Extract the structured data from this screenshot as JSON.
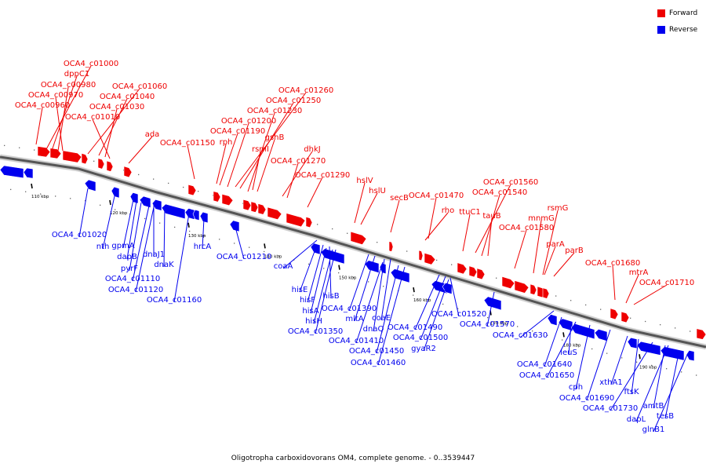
{
  "legend": {
    "forward_label": "Forward",
    "reverse_label": "Reverse",
    "forward_color": "#ee0000",
    "reverse_color": "#0000ee"
  },
  "caption": "Oligotropha carboxidovorans OM4, complete genome. - 0..3539447",
  "ticks": [
    "110 kbp",
    "120 kbp",
    "130 kbp",
    "140 kbp",
    "150 kbp",
    "160 kbp",
    "170 kbp",
    "180 kbp",
    "190 kbp"
  ],
  "forward_genes": [
    "OCA4_c01000",
    "dppC1",
    "OCA4_c00980",
    "OCA4_c00970",
    "OCA4_c00960",
    "OCA4_c01060",
    "OCA4_c01040",
    "OCA4_c01030",
    "OCA4_c01010",
    "ada",
    "OCA4_c01150",
    "OCA4_c01260",
    "OCA4_c01250",
    "OCA4_c01230",
    "OCA4_c01200",
    "OCA4_c01190",
    "rph",
    "gshB",
    "rsmI",
    "dhkJ",
    "OCA4_c01270",
    "OCA4_c01290",
    "hslV",
    "hslU",
    "secB",
    "OCA4_c01470",
    "rho",
    "ttuC1",
    "OCA4_c01560",
    "OCA4_c01540",
    "tauB",
    "rsmG",
    "mnmG",
    "OCA4_c01580",
    "parA",
    "parB",
    "OCA4_c01680",
    "mtrA",
    "OCA4_c01710"
  ],
  "reverse_genes": [
    "OCA4_c01020",
    "nth",
    "gpmA",
    "dapB",
    "dnaJ1",
    "pyrF",
    "dnaK",
    "OCA4_c01110",
    "OCA4_c01120",
    "OCA4_c01160",
    "hrcA",
    "OCA4_c01210",
    "coaA",
    "hisE",
    "hisF",
    "hisB",
    "hisA",
    "hisH",
    "OCA4_c01350",
    "OCA4_c01390",
    "mltA",
    "coaE",
    "dnaQ",
    "OCA4_c01410",
    "OCA4_c01490",
    "OCA4_c01450",
    "OCA4_c01500",
    "OCA4_c01460",
    "gyaR2",
    "OCA4_c01520",
    "OCA4_c01570",
    "OCA4_c01630",
    "leuS",
    "OCA4_c01640",
    "OCA4_c01650",
    "cph",
    "xthA1",
    "OCA4_c01690",
    "ftsK",
    "OCA4_c01730",
    "amtB",
    "dapL",
    "tesB",
    "glnB1"
  ]
}
